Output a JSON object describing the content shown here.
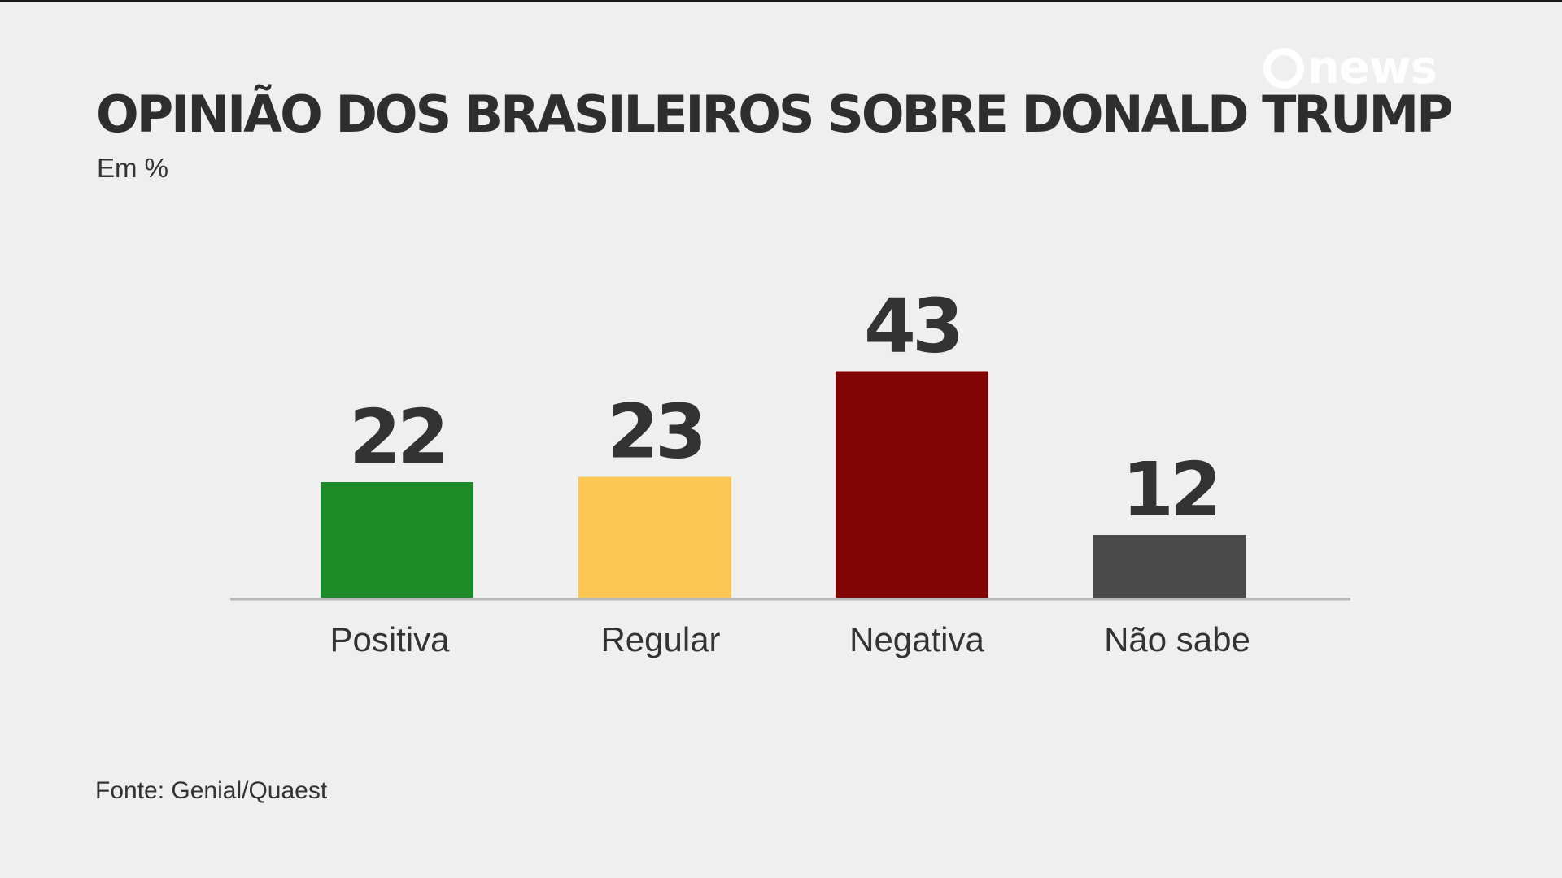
{
  "title": "OPINIÃO DOS BRASILEIROS SOBRE DONALD TRUMP",
  "subtitle": "Em %",
  "source": "Fonte: Genial/Quaest",
  "logo": {
    "text": "news",
    "icon": "globo-ring-icon"
  },
  "chart_data": {
    "type": "bar",
    "title": "OPINIÃO DOS BRASILEIROS SOBRE DONALD TRUMP",
    "subtitle": "Em %",
    "categories": [
      "Positiva",
      "Regular",
      "Negativa",
      "Não sabe"
    ],
    "values": [
      22,
      23,
      43,
      12
    ],
    "colors": [
      "#1e8a28",
      "#fcc653",
      "#820505",
      "#4a4a4a"
    ],
    "value_labels": [
      "22",
      "23",
      "43",
      "12"
    ],
    "xlabel": "",
    "ylabel": "",
    "ylim": [
      0,
      50
    ],
    "grid": false,
    "legend": "none"
  }
}
